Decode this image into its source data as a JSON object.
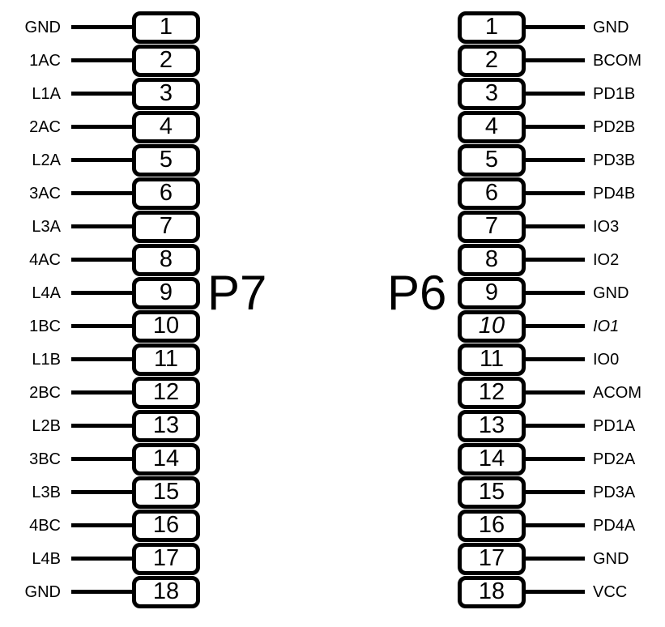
{
  "diagram": {
    "background_color": "#ffffff",
    "line_color": "#000000",
    "pin_count_per_connector": 18
  },
  "connectors": [
    {
      "name": "P7",
      "side": "left",
      "pins": [
        {
          "num": "1",
          "label": "GND"
        },
        {
          "num": "2",
          "label": "1AC"
        },
        {
          "num": "3",
          "label": "L1A"
        },
        {
          "num": "4",
          "label": "2AC"
        },
        {
          "num": "5",
          "label": "L2A"
        },
        {
          "num": "6",
          "label": "3AC"
        },
        {
          "num": "7",
          "label": "L3A"
        },
        {
          "num": "8",
          "label": "4AC"
        },
        {
          "num": "9",
          "label": "L4A"
        },
        {
          "num": "10",
          "label": "1BC"
        },
        {
          "num": "11",
          "label": "L1B"
        },
        {
          "num": "12",
          "label": "2BC"
        },
        {
          "num": "13",
          "label": "L2B"
        },
        {
          "num": "14",
          "label": "3BC"
        },
        {
          "num": "15",
          "label": "L3B"
        },
        {
          "num": "16",
          "label": "4BC"
        },
        {
          "num": "17",
          "label": "L4B"
        },
        {
          "num": "18",
          "label": "GND"
        }
      ]
    },
    {
      "name": "P6",
      "side": "right",
      "pins": [
        {
          "num": "1",
          "label": "GND"
        },
        {
          "num": "2",
          "label": "BCOM"
        },
        {
          "num": "3",
          "label": "PD1B"
        },
        {
          "num": "4",
          "label": "PD2B"
        },
        {
          "num": "5",
          "label": "PD3B"
        },
        {
          "num": "6",
          "label": "PD4B"
        },
        {
          "num": "7",
          "label": "IO3"
        },
        {
          "num": "8",
          "label": "IO2"
        },
        {
          "num": "9",
          "label": "GND"
        },
        {
          "num": "10",
          "label": "IO1",
          "italic": true
        },
        {
          "num": "11",
          "label": "IO0"
        },
        {
          "num": "12",
          "label": "ACOM"
        },
        {
          "num": "13",
          "label": "PD1A"
        },
        {
          "num": "14",
          "label": "PD2A"
        },
        {
          "num": "15",
          "label": "PD3A"
        },
        {
          "num": "16",
          "label": "PD4A"
        },
        {
          "num": "17",
          "label": "GND"
        },
        {
          "num": "18",
          "label": "VCC"
        }
      ]
    }
  ]
}
